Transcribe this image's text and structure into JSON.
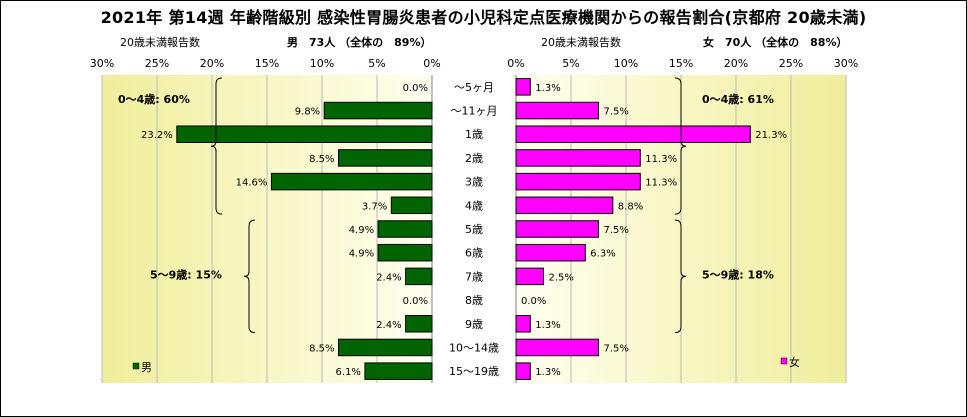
{
  "title": "2021年 第14週 年齢階級別 感染性胃腸炎患者の小児科定点医療機関からの報告割合(京都府 20歳未満)",
  "left_header": {
    "axis_label": "20歳未満報告数",
    "summary": "男　73人 （全体の　89%）"
  },
  "right_header": {
    "axis_label": "20歳未満報告数",
    "summary": "女　70人 （全体の　88%）"
  },
  "colors": {
    "male_bar": "#006400",
    "female_bar": "#FF00FF",
    "plot_gradient_light": "#FFFFF0",
    "plot_gradient_dark": "#F0EE9A",
    "grid": "#BBBBBB"
  },
  "chart_data": {
    "type": "bar",
    "orientation": "horizontal-butterfly",
    "categories": [
      "～5ヶ月",
      "～11ヶ月",
      "1歳",
      "2歳",
      "3歳",
      "4歳",
      "5歳",
      "6歳",
      "7歳",
      "8歳",
      "9歳",
      "10～14歳",
      "15～19歳"
    ],
    "xlim": [
      0,
      30
    ],
    "ticks": [
      0,
      5,
      10,
      15,
      20,
      25,
      30
    ],
    "tick_labels": [
      "0%",
      "5%",
      "10%",
      "15%",
      "20%",
      "25%",
      "30%"
    ],
    "grid": true,
    "series": [
      {
        "name": "男",
        "side": "left",
        "values": [
          0.0,
          9.8,
          23.2,
          8.5,
          14.6,
          3.7,
          4.9,
          4.9,
          2.4,
          0.0,
          2.4,
          8.5,
          6.1
        ],
        "labels": [
          "0.0%",
          "9.8%",
          "23.2%",
          "8.5%",
          "14.6%",
          "3.7%",
          "4.9%",
          "4.9%",
          "2.4%",
          "0.0%",
          "2.4%",
          "8.5%",
          "6.1%"
        ]
      },
      {
        "name": "女",
        "side": "right",
        "values": [
          1.3,
          7.5,
          21.3,
          11.3,
          11.3,
          8.8,
          7.5,
          6.3,
          2.5,
          0.0,
          1.3,
          7.5,
          1.3
        ],
        "labels": [
          "1.3%",
          "7.5%",
          "21.3%",
          "11.3%",
          "11.3%",
          "8.8%",
          "7.5%",
          "6.3%",
          "2.5%",
          "0.0%",
          "1.3%",
          "7.5%",
          "1.3%"
        ]
      }
    ],
    "annotations": [
      {
        "side": "left",
        "text": "0～4歳: 60%",
        "from": 0,
        "to": 5
      },
      {
        "side": "left",
        "text": "5～9歳: 15%",
        "from": 6,
        "to": 10
      },
      {
        "side": "right",
        "text": "0～4歳: 61%",
        "from": 0,
        "to": 5
      },
      {
        "side": "right",
        "text": "5～9歳: 18%",
        "from": 6,
        "to": 10
      }
    ],
    "legend": [
      {
        "side": "left",
        "label": "男"
      },
      {
        "side": "right",
        "label": "女"
      }
    ]
  }
}
